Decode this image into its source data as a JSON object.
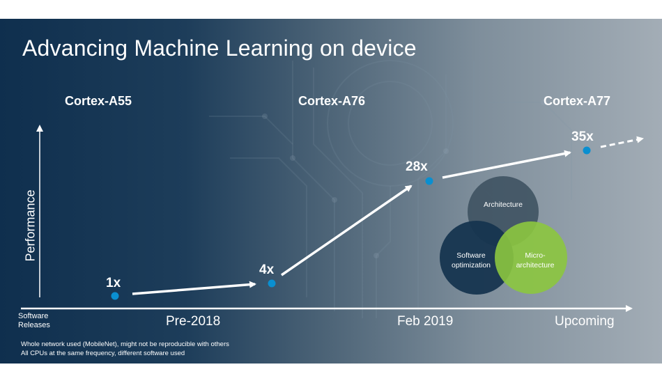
{
  "title": "Advancing Machine Learning on device",
  "cpus": {
    "a55": "Cortex-A55",
    "a76": "Cortex-A76",
    "a77": "Cortex-A77"
  },
  "y_axis_label": "Performance",
  "x_axis": {
    "name_line1": "Software",
    "name_line2": "Releases",
    "ticks": [
      "Pre-2018",
      "Feb 2019",
      "Upcoming"
    ]
  },
  "points": [
    {
      "label": "1x"
    },
    {
      "label": "4x"
    },
    {
      "label": "28x"
    },
    {
      "label": "35x"
    }
  ],
  "venn": {
    "architecture": "Architecture",
    "software_line1": "Software",
    "software_line2": "optimization",
    "micro_line1": "Micro-",
    "micro_line2": "architecture"
  },
  "footnotes": [
    "Whole network used (MobileNet), might not be reproducible with others",
    "All CPUs at the same frequency, different software used"
  ],
  "colors": {
    "point": "#0a8fd0",
    "architecture_circle": "#3b4f5e",
    "software_circle": "#16354f",
    "micro_circle": "#8cc63f"
  }
}
